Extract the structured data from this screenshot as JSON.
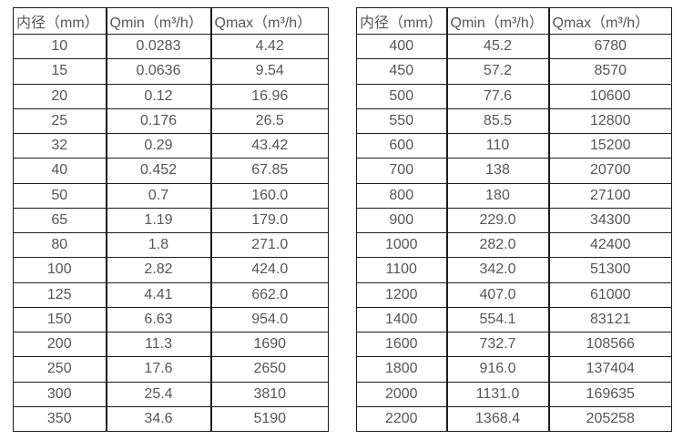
{
  "page": {
    "background": "#ffffff",
    "text_color": "#565656",
    "border_color": "#1c1c1c"
  },
  "chart_data": [
    {
      "type": "table",
      "name": "flow-range-small-diameters",
      "headers": [
        "内径（mm）",
        "Qmin（m³/h）",
        "Qmax（m³/h）"
      ],
      "rows": [
        [
          "10",
          "0.0283",
          "4.42"
        ],
        [
          "15",
          "0.0636",
          "9.54"
        ],
        [
          "20",
          "0.12",
          "16.96"
        ],
        [
          "25",
          "0.176",
          "26.5"
        ],
        [
          "32",
          "0.29",
          "43.42"
        ],
        [
          "40",
          "0.452",
          "67.85"
        ],
        [
          "50",
          "0.7",
          "160.0"
        ],
        [
          "65",
          "1.19",
          "179.0"
        ],
        [
          "80",
          "1.8",
          "271.0"
        ],
        [
          "100",
          "2.82",
          "424.0"
        ],
        [
          "125",
          "4.41",
          "662.0"
        ],
        [
          "150",
          "6.63",
          "954.0"
        ],
        [
          "200",
          "11.3",
          "1690"
        ],
        [
          "250",
          "17.6",
          "2650"
        ],
        [
          "300",
          "25.4",
          "3810"
        ],
        [
          "350",
          "34.6",
          "5190"
        ]
      ]
    },
    {
      "type": "table",
      "name": "flow-range-large-diameters",
      "headers": [
        "内径（mm）",
        "Qmin（m³/h）",
        "Qmax（m³/h）"
      ],
      "rows": [
        [
          "400",
          "45.2",
          "6780"
        ],
        [
          "450",
          "57.2",
          "8570"
        ],
        [
          "500",
          "77.6",
          "10600"
        ],
        [
          "550",
          "85.5",
          "12800"
        ],
        [
          "600",
          "110",
          "15200"
        ],
        [
          "700",
          "138",
          "20700"
        ],
        [
          "800",
          "180",
          "27100"
        ],
        [
          "900",
          "229.0",
          "34300"
        ],
        [
          "1000",
          "282.0",
          "42400"
        ],
        [
          "1100",
          "342.0",
          "51300"
        ],
        [
          "1200",
          "407.0",
          "61000"
        ],
        [
          "1400",
          "554.1",
          "83121"
        ],
        [
          "1600",
          "732.7",
          "108566"
        ],
        [
          "1800",
          "916.0",
          "137404"
        ],
        [
          "2000",
          "1131.0",
          "169635"
        ],
        [
          "2200",
          "1368.4",
          "205258"
        ]
      ]
    }
  ]
}
